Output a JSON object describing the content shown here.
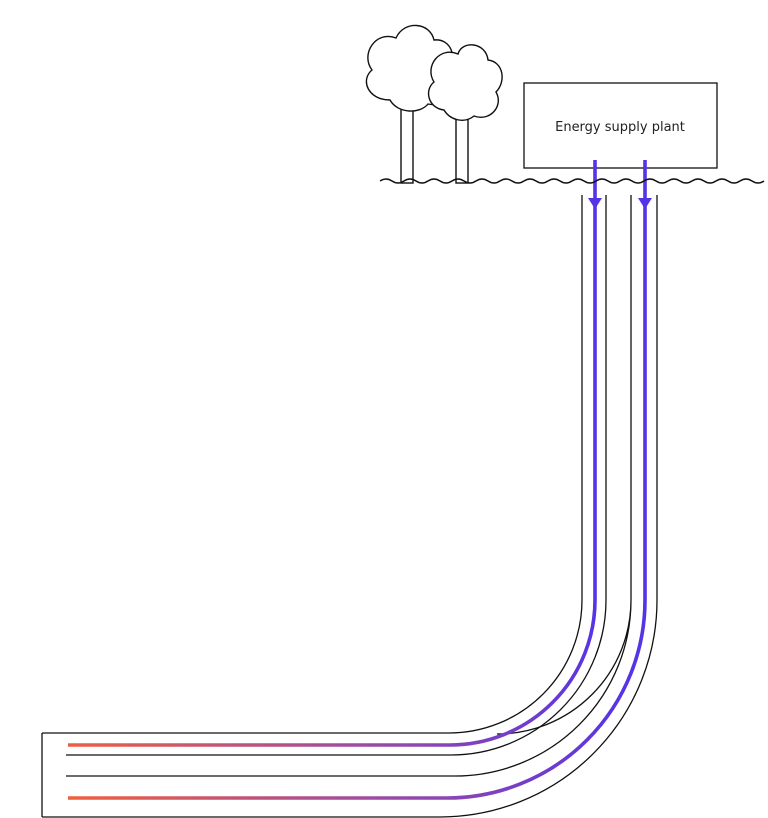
{
  "plant": {
    "label": "Energy supply plant"
  },
  "colors": {
    "outline": "#111111",
    "cold_flow": "#5533e6",
    "hot_flow": "#f2603c",
    "background": "#ffffff"
  },
  "icons": [
    "tree-icon",
    "tree-icon",
    "flow-arrow-icon",
    "flow-arrow-icon",
    "ground-line"
  ]
}
